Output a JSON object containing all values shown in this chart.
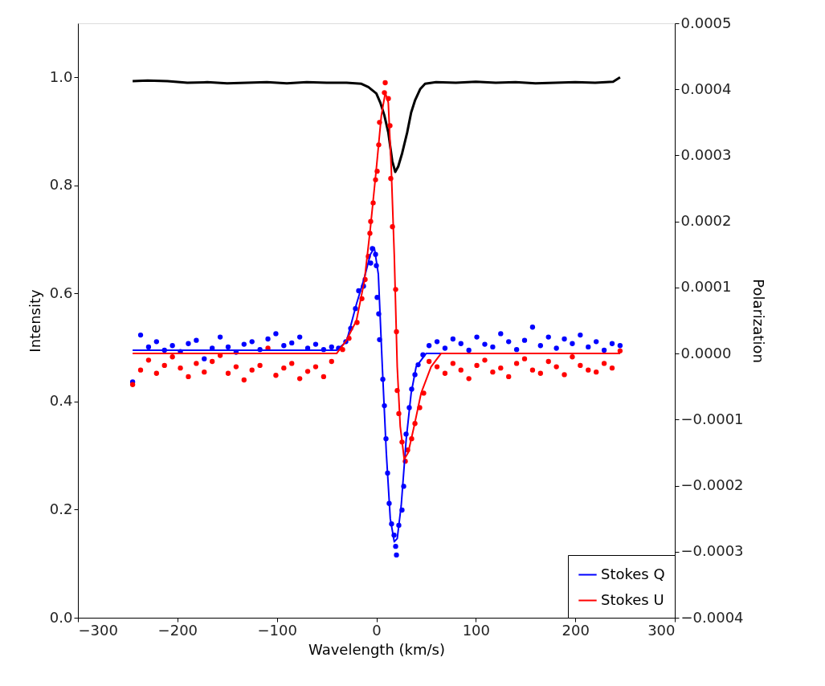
{
  "chart_data": {
    "type": "scatter",
    "xlabel": "Wavelength (km/s)",
    "ylabel": "Intensity",
    "y2label": "Polarization",
    "xlim": [
      -300,
      300
    ],
    "ylim": [
      0,
      1.1
    ],
    "y2lim": [
      -0.0004,
      0.0005
    ],
    "xticks": [
      {
        "value": -300,
        "label": "−300"
      },
      {
        "value": -200,
        "label": "−200"
      },
      {
        "value": -100,
        "label": "−100"
      },
      0,
      100,
      200,
      300
    ],
    "yticks": [
      {
        "value": 0,
        "label": "0.0"
      },
      0.2,
      0.4,
      0.6,
      0.8,
      {
        "value": 1,
        "label": "1.0"
      }
    ],
    "y2ticks": [
      {
        "value": -0.0004,
        "label": "−0.0004"
      },
      {
        "value": -0.0003,
        "label": "−0.0003"
      },
      {
        "value": -0.0002,
        "label": "−0.0002"
      },
      {
        "value": -0.0001,
        "label": "−0.0001"
      },
      {
        "value": 0,
        "label": "0.0000"
      },
      0.0001,
      0.0002,
      0.0003,
      0.0004,
      0.0005
    ],
    "grid": false,
    "legend": "bottom right",
    "series": [
      {
        "type": "line",
        "color": "#000000",
        "x": [
          -245,
          -230,
          -210,
          -190,
          -170,
          -150,
          -130,
          -110,
          -90,
          -70,
          -50,
          -30,
          -15,
          -8,
          0,
          4,
          8,
          12,
          16,
          19,
          22,
          26,
          31,
          35,
          39,
          44,
          49,
          60,
          80,
          100,
          120,
          140,
          160,
          180,
          200,
          220,
          238,
          245
        ],
        "values": [
          0.993,
          0.994,
          0.993,
          0.99,
          0.991,
          0.989,
          0.99,
          0.991,
          0.989,
          0.991,
          0.99,
          0.99,
          0.988,
          0.982,
          0.97,
          0.953,
          0.93,
          0.898,
          0.845,
          0.825,
          0.835,
          0.86,
          0.898,
          0.935,
          0.958,
          0.978,
          0.988,
          0.991,
          0.99,
          0.992,
          0.99,
          0.991,
          0.989,
          0.99,
          0.991,
          0.99,
          0.992,
          1.0
        ]
      },
      {
        "marker": "circle",
        "axis": "y2",
        "color": "#0000ff",
        "x": [
          -245,
          -237,
          -229,
          -221,
          -213,
          -205,
          -197,
          -189,
          -181,
          -173,
          -165,
          -157,
          -149,
          -141,
          -133,
          -125,
          -117,
          -109,
          -101,
          -93,
          -85,
          -77,
          -69,
          -61,
          -53,
          -45,
          -38,
          -30.7,
          -25.8,
          -21.0,
          -17.8,
          -12.9,
          -5.7,
          -4.0,
          -0.8,
          0,
          0.8,
          2.4,
          3.2,
          6.5,
          8.1,
          9.7,
          11.3,
          12.9,
          15.3,
          17.8,
          19.4,
          20.2,
          22.6,
          25.8,
          27.5,
          29.9,
          33.1,
          35.5,
          38.8,
          42.0,
          46.8,
          53,
          61,
          69,
          77,
          85,
          93,
          101,
          109,
          117,
          125,
          133,
          141,
          149,
          157,
          165,
          173,
          181,
          189,
          197,
          205,
          213,
          221,
          229,
          237,
          245
        ],
        "values": [
          -4.3e-05,
          2.8e-05,
          1e-05,
          1.8e-05,
          5e-06,
          1.2e-05,
          3e-06,
          1.5e-05,
          2e-05,
          -8e-06,
          8e-06,
          2.5e-05,
          1e-05,
          2e-06,
          1.4e-05,
          1.8e-05,
          6e-06,
          2.2e-05,
          3e-05,
          1.2e-05,
          1.6e-05,
          2.5e-05,
          8e-06,
          1.4e-05,
          6e-06,
          1e-05,
          8e-06,
          1.8e-05,
          3.8e-05,
          6.8e-05,
          9.5e-05,
          0.000102,
          0.000137,
          0.000159,
          0.00015,
          0.000133,
          8.5e-05,
          6e-05,
          2.1e-05,
          -3.9e-05,
          -7.9e-05,
          -0.000129,
          -0.000181,
          -0.000227,
          -0.000258,
          -0.000275,
          -0.000292,
          -0.000305,
          -0.00026,
          -0.000237,
          -0.000201,
          -0.000122,
          -8.2e-05,
          -5.4e-05,
          -3.2e-05,
          -1.7e-05,
          -2e-06,
          1.2e-05,
          1.8e-05,
          8e-06,
          2.2e-05,
          1.5e-05,
          5e-06,
          2.5e-05,
          1.4e-05,
          1e-05,
          3e-05,
          1.8e-05,
          6e-06,
          2e-05,
          4e-05,
          1.2e-05,
          2.5e-05,
          8e-06,
          2.2e-05,
          1.5e-05,
          2.8e-05,
          1e-05,
          1.8e-05,
          5e-06,
          1.5e-05,
          1.2e-05
        ]
      },
      {
        "marker": "circle",
        "axis": "y2",
        "color": "#ff0000",
        "x": [
          -245,
          -237,
          -229,
          -221,
          -213,
          -205,
          -197,
          -189,
          -181,
          -173,
          -165,
          -157,
          -149,
          -141,
          -133,
          -125,
          -117,
          -109,
          -101,
          -93,
          -85,
          -77,
          -69,
          -61,
          -53,
          -45,
          -33.9,
          -27.5,
          -19.4,
          -14.5,
          -11.3,
          -8.1,
          -6.5,
          -5.7,
          -3.2,
          -0.8,
          0.8,
          2.4,
          3.2,
          8.1,
          8.9,
          12.1,
          13.7,
          14.5,
          16.2,
          19.4,
          20.2,
          21.0,
          22.6,
          25.8,
          29.1,
          31.5,
          35.5,
          38.8,
          43.6,
          47.6,
          53,
          61,
          69,
          77,
          85,
          93,
          101,
          109,
          117,
          125,
          133,
          141,
          149,
          157,
          165,
          173,
          181,
          189,
          197,
          205,
          213,
          221,
          229,
          237,
          245
        ],
        "values": [
          -4.7e-05,
          -2.5e-05,
          -1e-05,
          -3e-05,
          -1.8e-05,
          -5e-06,
          -2.2e-05,
          -3.5e-05,
          -1.5e-05,
          -2.8e-05,
          -1.2e-05,
          -3e-06,
          -3e-05,
          -2e-05,
          -4e-05,
          -2.5e-05,
          -1.8e-05,
          8e-06,
          -3.3e-05,
          -2.2e-05,
          -1.5e-05,
          -3.8e-05,
          -2.7e-05,
          -2e-05,
          -3.5e-05,
          -1.2e-05,
          6e-06,
          2.3e-05,
          4.7e-05,
          8.3e-05,
          0.000112,
          0.000147,
          0.000182,
          0.0002,
          0.000228,
          0.000263,
          0.000276,
          0.000316,
          0.00035,
          0.000395,
          0.00041,
          0.000386,
          0.000345,
          0.000265,
          0.000192,
          9.7e-05,
          3.3e-05,
          -5.6e-05,
          -9.1e-05,
          -0.000134,
          -0.000163,
          -0.000146,
          -0.000129,
          -0.000106,
          -8.2e-05,
          -6e-05,
          -1.2e-05,
          -2e-05,
          -3e-05,
          -1.5e-05,
          -2.5e-05,
          -3.8e-05,
          -1.8e-05,
          -1e-05,
          -2.8e-05,
          -2.2e-05,
          -3.5e-05,
          -1.5e-05,
          -8e-06,
          -2.5e-05,
          -3e-05,
          -1.2e-05,
          -2e-05,
          -3.2e-05,
          -5e-06,
          -1.8e-05,
          -2.5e-05,
          -2.8e-05,
          -1.5e-05,
          -2.2e-05,
          4e-06
        ]
      },
      {
        "type": "line",
        "axis": "y2",
        "name": "Stokes Q",
        "color": "#0000ff",
        "x": [
          -245,
          -40,
          -30,
          -20,
          -12,
          -6,
          -2,
          2,
          6,
          10,
          14,
          18,
          21,
          25,
          30,
          35,
          40,
          50,
          245
        ],
        "values": [
          5e-06,
          5e-06,
          1.8e-05,
          7.5e-05,
          0.000115,
          0.00015,
          0.00016,
          0.00012,
          -2e-05,
          -0.00015,
          -0.00025,
          -0.000285,
          -0.00028,
          -0.00023,
          -0.00013,
          -6e-05,
          -2e-05,
          0,
          0
        ]
      },
      {
        "type": "line",
        "axis": "y2",
        "name": "Stokes U",
        "color": "#ff0000",
        "x": [
          -245,
          -40,
          -30,
          -20,
          -12,
          -6,
          0,
          5,
          9,
          12,
          15,
          18,
          21,
          24,
          28,
          32,
          38,
          45,
          55,
          65,
          245
        ],
        "values": [
          0,
          0,
          2e-05,
          5e-05,
          0.00011,
          0.00019,
          0.00028,
          0.00036,
          0.000395,
          0.00038,
          0.00028,
          0.00015,
          -2e-05,
          -0.00011,
          -0.00016,
          -0.00015,
          -0.00011,
          -6e-05,
          -2e-05,
          0,
          0
        ]
      }
    ]
  }
}
